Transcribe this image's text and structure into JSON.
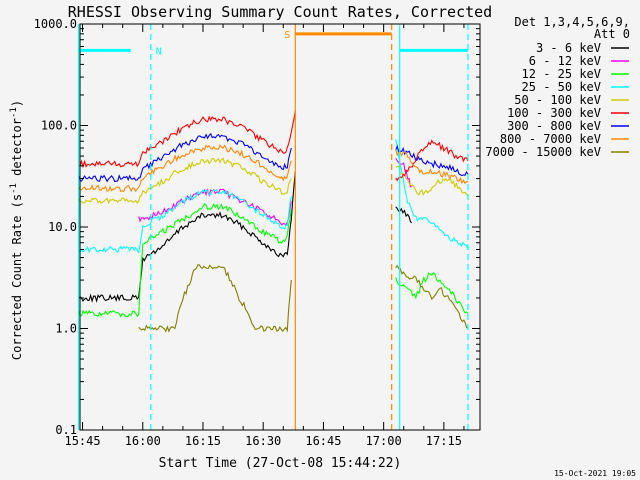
{
  "chart_data": {
    "type": "line",
    "title": "RHESSI Observing Summary Count Rates, Corrected",
    "xlabel": "Start Time (27-Oct-08 15:44:22)",
    "ylabel": "Corrected Count Rate (s⁻¹ detector⁻¹)",
    "ylabel_main": "Corrected Count Rate (s",
    "ylabel_sup1": "-1",
    "ylabel_mid": " detector",
    "ylabel_sup2": "-1",
    "ylabel_end": ")",
    "yscale": "log",
    "ylim": [
      0.1,
      1000
    ],
    "xlim": [
      "15:44:22",
      "17:24:00"
    ],
    "x_ticks": [
      "15:45",
      "16:00",
      "16:15",
      "16:30",
      "16:45",
      "17:00",
      "17:15"
    ],
    "y_ticks": [
      "0.1",
      "1.0",
      "10.0",
      "100.0",
      "1000.0"
    ],
    "legend_header_1": "Det 1,3,4,5,6,9,",
    "legend_header_2": "Att 0",
    "legend_position": "right, outside",
    "footer_timestamp": "15-Oct-2021 19:05",
    "series": [
      {
        "name": "3 - 6 keV",
        "color": "#000000",
        "segments": [
          {
            "x": [
              "15:44",
              "15:59",
              "16:00",
              "16:05",
              "16:10",
              "16:15",
              "16:20",
              "16:25",
              "16:30",
              "16:35",
              "16:36",
              "16:37",
              "16:38"
            ],
            "y": [
              2.0,
              2.0,
              4.8,
              6.5,
              10,
              13,
              13,
              10,
              7,
              5,
              5.5,
              12,
              35
            ]
          },
          {
            "x": [
              "17:03",
              "17:04",
              "17:06",
              "17:07"
            ],
            "y": [
              16,
              15,
              13,
              11
            ]
          }
        ]
      },
      {
        "name": "6 - 12 keV",
        "color": "#ff00ff",
        "segments": [
          {
            "x": [
              "15:59",
              "16:00",
              "16:05",
              "16:10",
              "16:15",
              "16:20",
              "16:25",
              "16:30",
              "16:35",
              "16:36",
              "16:37"
            ],
            "y": [
              12,
              12,
              14,
              18,
              22,
              22,
              18,
              14,
              11,
              11,
              18
            ]
          },
          {
            "x": [
              "17:03",
              "17:05",
              "17:06",
              "17:07"
            ],
            "y": [
              50,
              40,
              30,
              25
            ]
          }
        ]
      },
      {
        "name": "12 - 25 keV",
        "color": "#00ff00",
        "segments": [
          {
            "x": [
              "15:44",
              "15:59",
              "16:00",
              "16:05",
              "16:10",
              "16:15",
              "16:20",
              "16:25",
              "16:30",
              "16:35",
              "16:36",
              "16:37"
            ],
            "y": [
              1.4,
              1.4,
              7,
              9,
              12,
              16,
              16,
              12,
              9,
              7,
              8,
              15
            ]
          },
          {
            "x": [
              "17:03",
              "17:08",
              "17:10",
              "17:12",
              "17:14",
              "17:16",
              "17:18",
              "17:20",
              "17:21"
            ],
            "y": [
              3,
              2,
              3,
              3.5,
              3,
              2.5,
              2,
              1.5,
              1.4
            ]
          }
        ]
      },
      {
        "name": "25 - 50 keV",
        "color": "#00ffff",
        "segments": [
          {
            "x": [
              "15:44",
              "15:59",
              "16:00",
              "16:05",
              "16:10",
              "16:15",
              "16:20",
              "16:25",
              "16:30",
              "16:35",
              "16:36",
              "16:37"
            ],
            "y": [
              6,
              6,
              10,
              13,
              18,
              22,
              22,
              18,
              13,
              10,
              10.5,
              20
            ]
          },
          {
            "x": [
              "17:03",
              "17:04",
              "17:06",
              "17:08",
              "17:10",
              "17:13",
              "17:16",
              "17:19",
              "17:21"
            ],
            "y": [
              70,
              45,
              18,
              12,
              12,
              10,
              8,
              7,
              6
            ]
          }
        ]
      },
      {
        "name": "50 - 100 keV",
        "color": "#cccc00",
        "segments": [
          {
            "x": [
              "15:44",
              "15:59",
              "16:00",
              "16:05",
              "16:10",
              "16:15",
              "16:20",
              "16:25",
              "16:30",
              "16:35",
              "16:36",
              "16:37"
            ],
            "y": [
              18,
              18,
              22,
              28,
              38,
              45,
              45,
              38,
              28,
              22,
              23,
              30
            ]
          },
          {
            "x": [
              "17:03",
              "17:06",
              "17:08",
              "17:11",
              "17:14",
              "17:17",
              "17:20",
              "17:21"
            ],
            "y": [
              40,
              30,
              22,
              22,
              28,
              28,
              22,
              20
            ]
          }
        ]
      },
      {
        "name": "100 - 300 keV",
        "color": "#ff0000",
        "segments": [
          {
            "x": [
              "15:44",
              "15:59",
              "16:00",
              "16:05",
              "16:10",
              "16:15",
              "16:20",
              "16:25",
              "16:30",
              "16:35",
              "16:36",
              "16:37",
              "16:38"
            ],
            "y": [
              42,
              42,
              55,
              70,
              95,
              115,
              115,
              95,
              70,
              55,
              58,
              90,
              140
            ]
          },
          {
            "x": [
              "17:03",
              "17:06",
              "17:09",
              "17:12",
              "17:15",
              "17:18",
              "17:21"
            ],
            "y": [
              30,
              35,
              55,
              70,
              60,
              50,
              45
            ]
          }
        ]
      },
      {
        "name": "300 - 800 keV",
        "color": "#0000ff",
        "segments": [
          {
            "x": [
              "15:44",
              "15:59",
              "16:00",
              "16:05",
              "16:10",
              "16:15",
              "16:20",
              "16:25",
              "16:30",
              "16:35",
              "16:36",
              "16:37"
            ],
            "y": [
              30,
              30,
              38,
              48,
              65,
              78,
              78,
              65,
              48,
              38,
              40,
              60
            ]
          },
          {
            "x": [
              "17:03",
              "17:06",
              "17:09",
              "17:12",
              "17:15",
              "17:18",
              "17:21"
            ],
            "y": [
              60,
              55,
              45,
              42,
              40,
              36,
              33
            ]
          }
        ]
      },
      {
        "name": "800 - 7000 keV",
        "color": "#ff8800",
        "segments": [
          {
            "x": [
              "15:44",
              "15:59",
              "16:00",
              "16:05",
              "16:10",
              "16:15",
              "16:20",
              "16:25",
              "16:30",
              "16:35",
              "16:36",
              "16:37"
            ],
            "y": [
              24,
              24,
              30,
              40,
              52,
              60,
              60,
              52,
              40,
              30,
              32,
              45
            ]
          },
          {
            "x": [
              "17:03",
              "17:06",
              "17:09",
              "17:12",
              "17:15",
              "17:18",
              "17:21"
            ],
            "y": [
              55,
              50,
              35,
              35,
              33,
              30,
              28
            ]
          }
        ]
      },
      {
        "name": "7000 - 15000 keV",
        "color": "#808000",
        "segments": [
          {
            "x": [
              "15:59",
              "16:08",
              "16:10",
              "16:12",
              "16:13",
              "16:20",
              "16:22",
              "16:24",
              "16:26",
              "16:28",
              "16:32",
              "16:33",
              "16:36",
              "16:37"
            ],
            "y": [
              1.0,
              1.0,
              2.0,
              3.0,
              4.0,
              4.0,
              3.0,
              2.0,
              1.5,
              1.0,
              1.0,
              1.0,
              1.0,
              3.0
            ]
          },
          {
            "x": [
              "17:03",
              "17:08",
              "17:10",
              "17:12",
              "17:14",
              "17:16",
              "17:18",
              "17:20",
              "17:21"
            ],
            "y": [
              4,
              3,
              2.5,
              2,
              2.5,
              2,
              1.5,
              1.2,
              1.0
            ]
          }
        ]
      }
    ],
    "markers": [
      {
        "label": "N",
        "color": "#00ffff",
        "start": "15:44",
        "end": "16:02",
        "bar_y": 550,
        "bar_start": "15:44",
        "bar_end": "15:57"
      },
      {
        "label": "",
        "color": "#00ffff",
        "start": "17:04",
        "end": "17:21",
        "bar_y": 550,
        "bar_start": "17:04",
        "bar_end": "17:21"
      },
      {
        "label": "S",
        "color": "#ff8800",
        "start": "16:38",
        "end": "17:02",
        "bar_y": 800,
        "bar_start": "16:38",
        "bar_end": "17:02"
      }
    ]
  }
}
